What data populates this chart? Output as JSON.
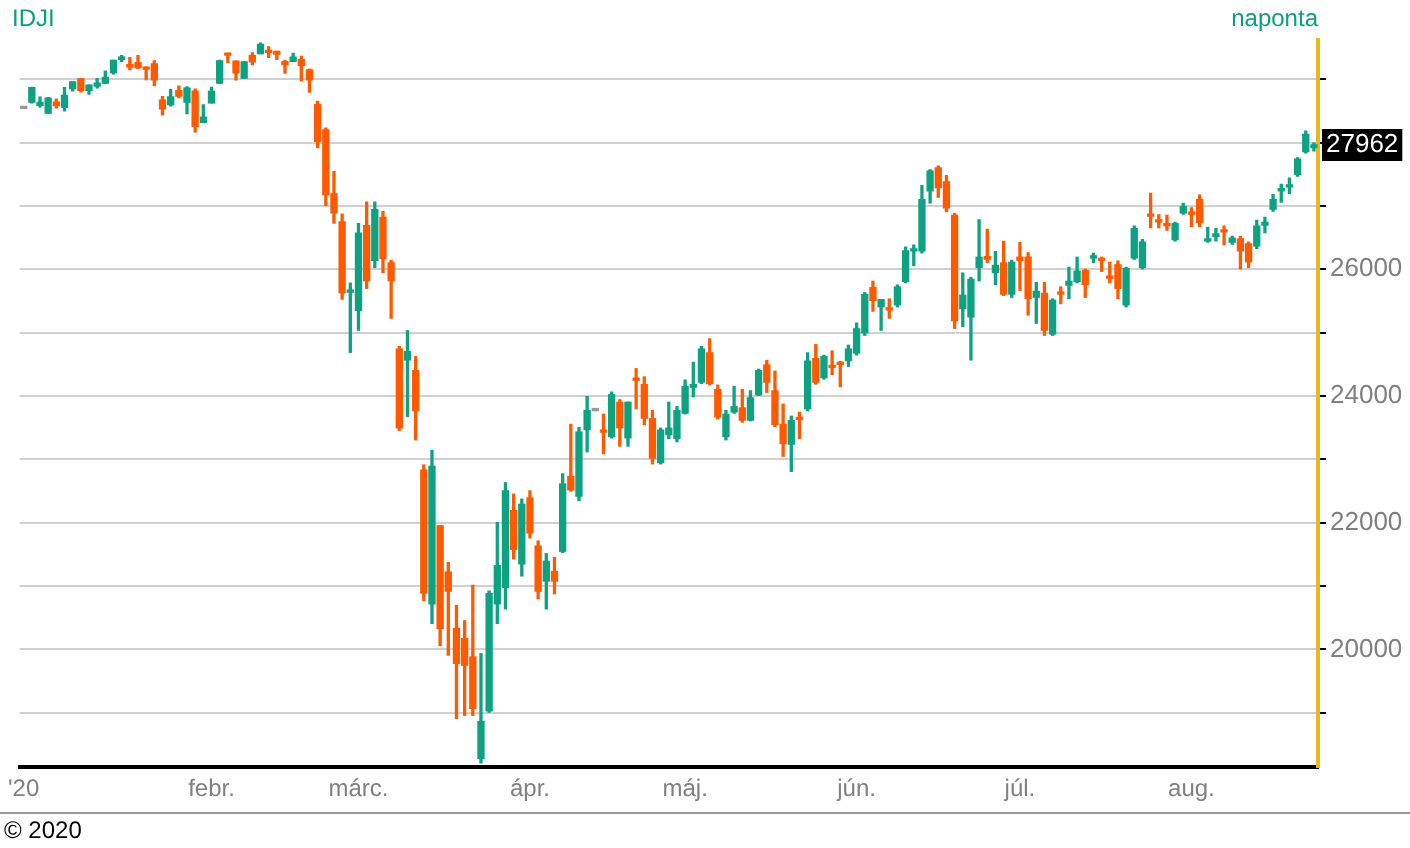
{
  "chart_data": {
    "type": "candlestick",
    "title": "IDJI",
    "subtitle": "naponta",
    "categories": [
      "'20",
      null,
      null,
      null,
      null,
      null,
      null,
      null,
      null,
      null,
      null,
      null,
      null,
      null,
      null,
      null,
      null,
      null,
      null,
      null,
      null,
      null,
      null,
      "febr.",
      null,
      null,
      null,
      null,
      null,
      null,
      null,
      null,
      null,
      null,
      null,
      null,
      null,
      null,
      null,
      null,
      null,
      "márc.",
      null,
      null,
      null,
      null,
      null,
      null,
      null,
      null,
      null,
      null,
      null,
      null,
      null,
      null,
      null,
      null,
      null,
      null,
      null,
      null,
      "ápr.",
      null,
      null,
      null,
      null,
      null,
      null,
      null,
      null,
      null,
      null,
      null,
      null,
      null,
      null,
      null,
      null,
      null,
      null,
      "máj.",
      null,
      null,
      null,
      null,
      null,
      null,
      null,
      null,
      null,
      null,
      null,
      null,
      null,
      null,
      null,
      null,
      null,
      null,
      null,
      null,
      "jún.",
      null,
      null,
      null,
      null,
      null,
      null,
      null,
      null,
      null,
      null,
      null,
      null,
      null,
      null,
      null,
      null,
      null,
      null,
      null,
      "júl.",
      null,
      null,
      null,
      null,
      null,
      null,
      null,
      null,
      null,
      null,
      null,
      null,
      null,
      null,
      null,
      null,
      null,
      null,
      null,
      null,
      "aug.",
      null,
      null,
      null,
      null,
      null,
      null,
      null,
      null,
      null,
      null,
      null,
      null,
      null,
      null,
      null
    ],
    "ohlc": [
      [
        28540,
        28540,
        28540,
        28540
      ],
      [
        28639,
        28873,
        28627,
        28868
      ],
      [
        28589,
        28717,
        28565,
        28634
      ],
      [
        28465,
        28708,
        28461,
        28703
      ],
      [
        28640,
        28686,
        28549,
        28583
      ],
      [
        28556,
        28866,
        28502,
        28745
      ],
      [
        28852,
        28957,
        28816,
        28957
      ],
      [
        29006,
        29009,
        28802,
        28824
      ],
      [
        28824,
        28907,
        28768,
        28907
      ],
      [
        28893,
        29010,
        28863,
        28940
      ],
      [
        28940,
        29127,
        28934,
        29030
      ],
      [
        29104,
        29298,
        29084,
        29298
      ],
      [
        29313,
        29374,
        29285,
        29348
      ],
      [
        29231,
        29342,
        29152,
        29196
      ],
      [
        29264,
        29373,
        29170,
        29186
      ],
      [
        29185,
        29190,
        28994,
        29160
      ],
      [
        29243,
        29288,
        28902,
        28990
      ],
      [
        28671,
        28725,
        28440,
        28535
      ],
      [
        28600,
        28836,
        28580,
        28723
      ],
      [
        28822,
        28892,
        28711,
        28734
      ],
      [
        28641,
        28879,
        28460,
        28860
      ],
      [
        28813,
        28843,
        28170,
        28256
      ],
      [
        28319,
        28595,
        28319,
        28400
      ],
      [
        28627,
        28873,
        28627,
        28808
      ],
      [
        28938,
        29297,
        28938,
        29291
      ],
      [
        29390,
        29409,
        29263,
        29380
      ],
      [
        29287,
        29287,
        28992,
        29103
      ],
      [
        29019,
        29277,
        29019,
        29276
      ],
      [
        29372,
        29415,
        29232,
        29276
      ],
      [
        29407,
        29569,
        29407,
        29551
      ],
      [
        29444,
        29510,
        29347,
        29424
      ],
      [
        29440,
        29441,
        29315,
        29398
      ],
      [
        29279,
        29299,
        29099,
        29232
      ],
      [
        29285,
        29407,
        29285,
        29348
      ],
      [
        29311,
        29361,
        28976,
        29219
      ],
      [
        29147,
        29161,
        28797,
        28992
      ],
      [
        28600,
        28650,
        27920,
        28020
      ],
      [
        28200,
        28230,
        27010,
        27180
      ],
      [
        27190,
        27540,
        26730,
        26890
      ],
      [
        26750,
        26870,
        25530,
        25630
      ],
      [
        25640,
        25780,
        24690,
        25670
      ],
      [
        25350,
        26720,
        25040,
        26570
      ],
      [
        26690,
        27060,
        25700,
        25820
      ],
      [
        26140,
        27060,
        26030,
        26940
      ],
      [
        26820,
        26910,
        25950,
        26170
      ],
      [
        26100,
        26140,
        25230,
        25820
      ],
      [
        24740,
        24780,
        23460,
        23500
      ],
      [
        24570,
        25030,
        23680,
        24700
      ],
      [
        24400,
        24620,
        23310,
        23770
      ],
      [
        22830,
        22910,
        20770,
        20890
      ],
      [
        20720,
        23140,
        20410,
        22890
      ],
      [
        21950,
        21950,
        20060,
        20330
      ],
      [
        21220,
        21370,
        19910,
        20920
      ],
      [
        20330,
        20690,
        18910,
        19780
      ],
      [
        20170,
        20450,
        18960,
        19750
      ],
      [
        19880,
        21010,
        18960,
        19070
      ],
      [
        18280,
        19930,
        18210,
        18860
      ],
      [
        19030,
        20920,
        19010,
        20880
      ],
      [
        20720,
        22000,
        20410,
        21320
      ],
      [
        20980,
        22630,
        20640,
        22500
      ],
      [
        22190,
        22450,
        21430,
        21580
      ],
      [
        21350,
        22370,
        21160,
        22290
      ],
      [
        22390,
        22500,
        21760,
        21840
      ],
      [
        21630,
        21710,
        20800,
        20920
      ],
      [
        21080,
        21510,
        20640,
        21390
      ],
      [
        21230,
        21450,
        20880,
        21080
      ],
      [
        21550,
        22770,
        21530,
        22610
      ],
      [
        22730,
        23550,
        22500,
        22520
      ],
      [
        22420,
        23500,
        22350,
        23430
      ],
      [
        23470,
        23990,
        23120,
        23770
      ],
      [
        23770,
        23770,
        23770,
        23770
      ],
      [
        23460,
        23710,
        23090,
        23430
      ],
      [
        23360,
        24060,
        23340,
        24020
      ],
      [
        23900,
        23940,
        23210,
        23500
      ],
      [
        23340,
        23900,
        23210,
        23900
      ],
      [
        24270,
        24430,
        23800,
        24250
      ],
      [
        24180,
        24300,
        23550,
        23650
      ],
      [
        23640,
        23770,
        22930,
        23020
      ],
      [
        22950,
        23490,
        22930,
        23460
      ],
      [
        23390,
        23900,
        23330,
        23490
      ],
      [
        23330,
        23830,
        23280,
        23770
      ],
      [
        23730,
        24250,
        23720,
        24150
      ],
      [
        24140,
        24530,
        23990,
        24180
      ],
      [
        24220,
        24780,
        24200,
        24740
      ],
      [
        24680,
        24900,
        24180,
        24200
      ],
      [
        24100,
        24170,
        23640,
        23670
      ],
      [
        23360,
        23770,
        23310,
        23710
      ],
      [
        23750,
        24150,
        23730,
        23830
      ],
      [
        23810,
        24100,
        23590,
        23620
      ],
      [
        23620,
        24080,
        23610,
        23970
      ],
      [
        24020,
        24420,
        24010,
        24400
      ],
      [
        24490,
        24560,
        24060,
        24220
      ],
      [
        24080,
        24390,
        23520,
        23550
      ],
      [
        23550,
        23870,
        23050,
        23250
      ],
      [
        23240,
        23680,
        22810,
        23610
      ],
      [
        23650,
        23740,
        23330,
        23630
      ],
      [
        23800,
        24680,
        23770,
        24550
      ],
      [
        24590,
        24810,
        24190,
        24220
      ],
      [
        24290,
        24640,
        24270,
        24620
      ],
      [
        24480,
        24710,
        24340,
        24450
      ],
      [
        24520,
        24540,
        24150,
        24500
      ],
      [
        24560,
        24800,
        24470,
        24740
      ],
      [
        24680,
        25150,
        24650,
        25060
      ],
      [
        25000,
        25630,
        24960,
        25600
      ],
      [
        25710,
        25810,
        25340,
        25510
      ],
      [
        25410,
        25520,
        25040,
        25520
      ],
      [
        25380,
        25530,
        25230,
        25360
      ],
      [
        25440,
        25750,
        25410,
        25720
      ],
      [
        25810,
        26350,
        25790,
        26290
      ],
      [
        26290,
        26380,
        26060,
        26310
      ],
      [
        26290,
        27320,
        26260,
        27100
      ],
      [
        27240,
        27570,
        27050,
        27550
      ],
      [
        27600,
        27630,
        27140,
        27290
      ],
      [
        27380,
        27480,
        26910,
        26970
      ],
      [
        26850,
        26880,
        25070,
        25190
      ],
      [
        25380,
        25940,
        25100,
        25590
      ],
      [
        25250,
        25870,
        24570,
        25840
      ],
      [
        26030,
        26780,
        25820,
        26190
      ],
      [
        26200,
        26630,
        26110,
        26160
      ],
      [
        25950,
        26280,
        25760,
        26060
      ],
      [
        26100,
        26440,
        25590,
        25610
      ],
      [
        25610,
        26140,
        25560,
        26110
      ],
      [
        26190,
        26420,
        25670,
        26140
      ],
      [
        26190,
        26260,
        25280,
        25540
      ],
      [
        25560,
        25790,
        25150,
        25650
      ],
      [
        25620,
        25790,
        24960,
        25040
      ],
      [
        24980,
        25530,
        24960,
        25510
      ],
      [
        25620,
        25720,
        25460,
        25610
      ],
      [
        25750,
        26030,
        25540,
        25810
      ],
      [
        25810,
        26190,
        25790,
        25970
      ],
      [
        25980,
        26000,
        25560,
        25760
      ],
      [
        26180,
        26250,
        26110,
        26200
      ],
      [
        26160,
        26190,
        25970,
        26140
      ],
      [
        25890,
        26110,
        25790,
        25860
      ],
      [
        26070,
        26130,
        25540,
        25700
      ],
      [
        25440,
        26030,
        25410,
        26010
      ],
      [
        26180,
        26680,
        26160,
        26640
      ],
      [
        26030,
        26470,
        26010,
        26430
      ],
      [
        26860,
        27200,
        26660,
        26840
      ],
      [
        26770,
        26860,
        26660,
        26750
      ],
      [
        26720,
        26850,
        26620,
        26690
      ],
      [
        26470,
        26740,
        26450,
        26720
      ],
      [
        26890,
        27040,
        26870,
        26990
      ],
      [
        26890,
        26970,
        26680,
        26870
      ],
      [
        27100,
        27170,
        26680,
        26740
      ],
      [
        26450,
        26660,
        26430,
        26480
      ],
      [
        26520,
        26640,
        26450,
        26560
      ],
      [
        26610,
        26680,
        26390,
        26590
      ],
      [
        26430,
        26520,
        26400,
        26490
      ],
      [
        26480,
        26520,
        26010,
        26290
      ],
      [
        26400,
        26430,
        26030,
        26120
      ],
      [
        26370,
        26770,
        26330,
        26680
      ],
      [
        26700,
        26820,
        26580,
        26740
      ],
      [
        26950,
        27180,
        26920,
        27100
      ],
      [
        27240,
        27340,
        27060,
        27270
      ],
      [
        27300,
        27440,
        27200,
        27330
      ],
      [
        27500,
        27760,
        27470,
        27740
      ],
      [
        27860,
        28180,
        27840,
        28130
      ],
      [
        27920,
        27990,
        27870,
        27962
      ]
    ],
    "colors": [
      "#999999",
      "#0ea283",
      "#0ea283",
      "#0ea283",
      "#ff5a00",
      "#0ea283",
      "#0ea283",
      "#ff5a00",
      "#0ea283",
      "#0ea283",
      "#0ea283",
      "#0ea283",
      "#0ea283",
      "#ff5a00",
      "#ff5a00",
      "#ff5a00",
      "#ff5a00",
      "#ff5a00",
      "#0ea283",
      "#ff5a00",
      "#0ea283",
      "#ff5a00",
      "#0ea283",
      "#0ea283",
      "#0ea283",
      "#ff5a00",
      "#ff5a00",
      "#0ea283",
      "#ff5a00",
      "#0ea283",
      "#ff5a00",
      "#ff5a00",
      "#ff5a00",
      "#0ea283",
      "#ff5a00",
      "#ff5a00",
      "#ff5a00",
      "#ff5a00",
      "#ff5a00",
      "#ff5a00",
      "#0ea283",
      "#0ea283",
      "#ff5a00",
      "#0ea283",
      "#ff5a00",
      "#ff5a00",
      "#ff5a00",
      "#0ea283",
      "#ff5a00",
      "#ff5a00",
      "#0ea283",
      "#ff5a00",
      "#ff5a00",
      "#ff5a00",
      "#ff5a00",
      "#ff5a00",
      "#0ea283",
      "#0ea283",
      "#0ea283",
      "#0ea283",
      "#ff5a00",
      "#0ea283",
      "#ff5a00",
      "#ff5a00",
      "#0ea283",
      "#ff5a00",
      "#0ea283",
      "#ff5a00",
      "#0ea283",
      "#0ea283",
      "#999999",
      "#ff5a00",
      "#0ea283",
      "#ff5a00",
      "#0ea283",
      "#ff5a00",
      "#ff5a00",
      "#ff5a00",
      "#0ea283",
      "#0ea283",
      "#0ea283",
      "#0ea283",
      "#0ea283",
      "#0ea283",
      "#ff5a00",
      "#ff5a00",
      "#0ea283",
      "#0ea283",
      "#ff5a00",
      "#0ea283",
      "#0ea283",
      "#ff5a00",
      "#ff5a00",
      "#ff5a00",
      "#0ea283",
      "#ff5a00",
      "#0ea283",
      "#ff5a00",
      "#0ea283",
      "#ff5a00",
      "#ff5a00",
      "#0ea283",
      "#0ea283",
      "#0ea283",
      "#ff5a00",
      "#0ea283",
      "#ff5a00",
      "#0ea283",
      "#0ea283",
      "#0ea283",
      "#0ea283",
      "#0ea283",
      "#ff5a00",
      "#ff5a00",
      "#ff5a00",
      "#0ea283",
      "#0ea283",
      "#0ea283",
      "#ff5a00",
      "#0ea283",
      "#ff5a00",
      "#0ea283",
      "#ff5a00",
      "#ff5a00",
      "#0ea283",
      "#ff5a00",
      "#0ea283",
      "#ff5a00",
      "#0ea283",
      "#0ea283",
      "#ff5a00",
      "#0ea283",
      "#ff5a00",
      "#ff5a00",
      "#ff5a00",
      "#0ea283",
      "#0ea283",
      "#0ea283",
      "#ff5a00",
      "#ff5a00",
      "#ff5a00",
      "#0ea283",
      "#0ea283",
      "#ff5a00",
      "#ff5a00",
      "#0ea283",
      "#0ea283",
      "#ff5a00",
      "#0ea283",
      "#ff5a00",
      "#ff5a00",
      "#0ea283",
      "#0ea283",
      "#0ea283",
      "#0ea283",
      "#0ea283",
      "#0ea283",
      "#0ea283",
      "#0ea283"
    ],
    "ylim": [
      18140,
      29620
    ],
    "yticks": [
      {
        "value": 19000,
        "label": null
      },
      20000,
      {
        "value": 21000,
        "label": null
      },
      22000,
      {
        "value": 23000,
        "label": null
      },
      24000,
      {
        "value": 25000,
        "label": null
      },
      26000,
      {
        "value": 27000,
        "label": null
      },
      {
        "value": 28000,
        "label": null
      },
      {
        "value": 29000,
        "label": null
      }
    ],
    "grid": "y",
    "annotations": [
      {
        "text": "27962",
        "y": 27962
      },
      "© 2020"
    ]
  }
}
